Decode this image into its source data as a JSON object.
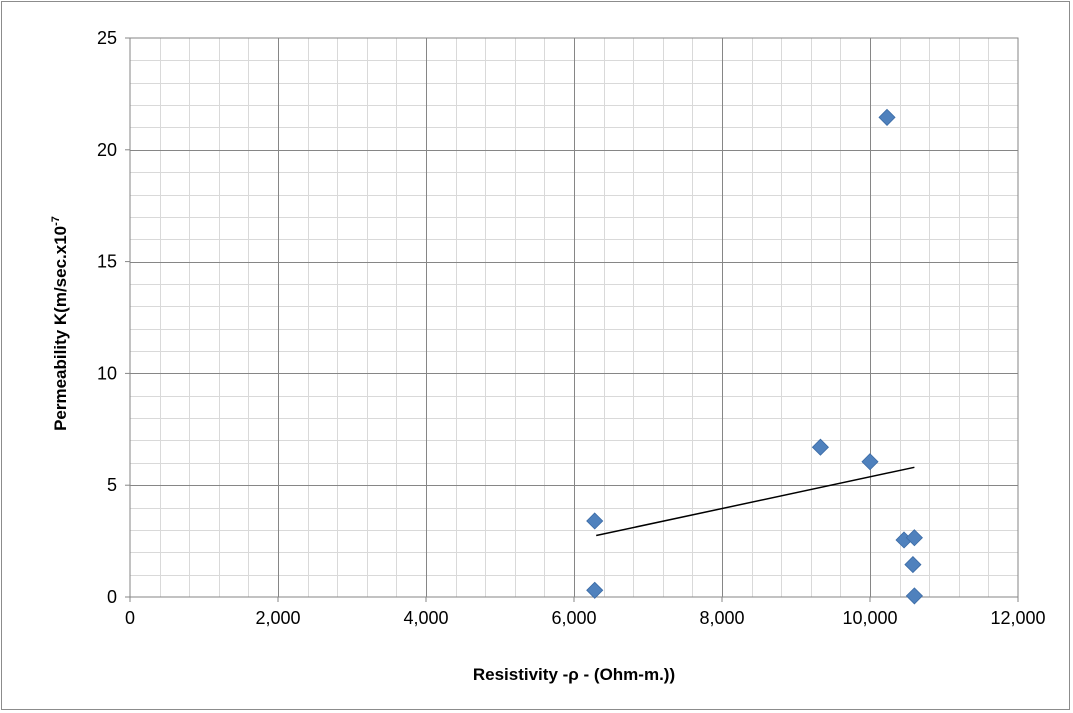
{
  "chart_data": {
    "type": "scatter",
    "xlabel": "Resistivity -ρ  - (Ohm-m.))",
    "ylabel": "Permeability K(m/sec.x10",
    "ylabel_superscript": "-7",
    "xlim": [
      0,
      12000
    ],
    "ylim": [
      0,
      25
    ],
    "x_ticks": [
      0,
      2000,
      4000,
      6000,
      8000,
      10000,
      12000
    ],
    "x_tick_labels": [
      "0",
      "2,000",
      "4,000",
      "6,000",
      "8,000",
      "10,000",
      "12,000"
    ],
    "y_ticks": [
      0,
      5,
      10,
      15,
      20,
      25
    ],
    "y_tick_labels": [
      "0",
      "5",
      "10",
      "15",
      "20",
      "25"
    ],
    "grid": true,
    "marker_color": "#4f81bd",
    "marker_shape": "diamond",
    "series": [
      {
        "points": [
          {
            "x": 6280,
            "y": 0.3
          },
          {
            "x": 6280,
            "y": 3.4
          },
          {
            "x": 9330,
            "y": 6.7
          },
          {
            "x": 10000,
            "y": 6.05
          },
          {
            "x": 10230,
            "y": 21.45
          },
          {
            "x": 10460,
            "y": 2.55
          },
          {
            "x": 10600,
            "y": 2.65
          },
          {
            "x": 10580,
            "y": 1.45
          },
          {
            "x": 10600,
            "y": 0.05
          }
        ]
      }
    ],
    "trendline": {
      "type": "linear",
      "color": "#000000",
      "x_start": 6300,
      "y_start": 2.75,
      "x_end": 10600,
      "y_end": 5.8
    }
  }
}
